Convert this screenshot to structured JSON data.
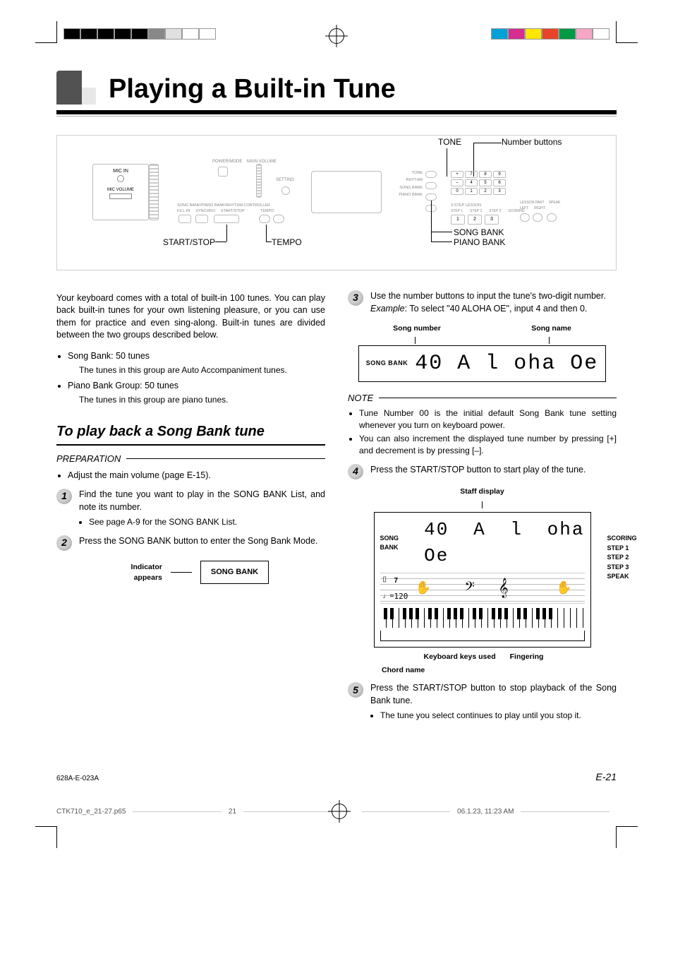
{
  "printmarks": {
    "left_swatches": [
      "#000000",
      "#000000",
      "#000000",
      "#000000",
      "#000000",
      "#888888",
      "#e0e0e0",
      "#ffffff",
      "#ffffff"
    ],
    "right_swatches": [
      "#00a1d6",
      "#d42e91",
      "#ffe600",
      "#e8442a",
      "#009944",
      "#f5a7c5",
      "#ffffff"
    ]
  },
  "title": "Playing a Built-in Tune",
  "diagram": {
    "callouts": {
      "tone": "TONE",
      "number_buttons": "Number buttons",
      "song_bank": "SONG BANK",
      "piano_bank": "PIANO BANK",
      "tempo": "TEMPO",
      "start_stop": "START/STOP"
    },
    "panel_labels": {
      "mic_in": "MIC IN",
      "mic_volume": "MIC VOLUME",
      "song_bank_ctrl": "SONG BANK/PIANO BANK/RHYTHM CONTROLLER",
      "power_mode": "POWER/MODE",
      "main_volume": "MAIN VOLUME",
      "setting": "SETTING",
      "fill_in": "FILL-IN",
      "synchro": "SYNCHRO",
      "start_stop_btn": "START/STOP",
      "tempo_btn": "TEMPO",
      "tone_btn": "TONE",
      "rhythm_btn": "RHYTHM",
      "song_bank_btn": "SONG BANK",
      "piano_bank_btn": "PIANO BANK",
      "three_step": "3-STEP LESSON",
      "step1": "STEP 1",
      "step2": "STEP 2",
      "step3": "STEP 3",
      "scoring": "SCORING",
      "lesson_part": "LESSON PART",
      "left": "LEFT",
      "right": "RIGHT",
      "speak": "SPEAK"
    },
    "keypad": [
      "+",
      "7",
      "8",
      "9",
      "–",
      "4",
      "5",
      "6",
      "0",
      "1",
      "2",
      "3"
    ],
    "step_keys": [
      "1",
      "2",
      "3"
    ]
  },
  "intro": "Your keyboard comes with a total of built-in 100 tunes. You can play back built-in tunes for your own listening pleasure, or you can use them for practice and even sing-along. Built-in tunes are divided between the two groups described below.",
  "groups": [
    {
      "head": "Song Bank: 50 tunes",
      "sub": "The tunes in this group are Auto Accompaniment tunes."
    },
    {
      "head": "Piano Bank Group: 50 tunes",
      "sub": "The tunes in this group are piano tunes."
    }
  ],
  "section_h2": "To play back a Song Bank tune",
  "preparation_label": "PREPARATION",
  "preparation_item": "Adjust the main volume (page E-15).",
  "steps_left": [
    {
      "n": "1",
      "text": "Find the tune you want to play in the SONG BANK List, and note its number.",
      "bullets": [
        "See page A-9 for the SONG BANK List."
      ]
    },
    {
      "n": "2",
      "text": "Press the SONG BANK button to enter the Song Bank Mode.",
      "bullets": []
    }
  ],
  "indicator_fig": {
    "label": "Indicator appears",
    "box": "SONG BANK"
  },
  "steps_right": [
    {
      "n": "3",
      "text": "Use the number buttons to input the tune's two-digit number.",
      "example_label": "Example",
      "example": "To select \"40 ALOHA OE\", input 4 and then 0."
    },
    {
      "n": "4",
      "text": "Press the START/STOP button to start play of the tune."
    },
    {
      "n": "5",
      "text": "Press the START/STOP button to stop playback of the Song Bank tune.",
      "bullets": [
        "The tune you select continues to play until you stop it."
      ]
    }
  ],
  "lcd1": {
    "callout_left": "Song number",
    "callout_right": "Song name",
    "badge": "SONG BANK",
    "seg": "40 A l oha  Oe"
  },
  "note": {
    "label": "NOTE",
    "items": [
      "Tune Number 00 is the initial default Song Bank tune setting whenever you turn on keyboard power.",
      "You can also increment the displayed tune number by pressing [+] and decrement is by pressing [–]."
    ]
  },
  "disp_fig": {
    "top": "Staff display",
    "badge": "SONG BANK",
    "seg": "40 A l oha  Oe",
    "tempo_value": "120",
    "beat_value": "7",
    "side": [
      "SCORING",
      "STEP 1",
      "STEP 2",
      "STEP 3",
      "SPEAK"
    ],
    "bottom_left": "Keyboard keys used",
    "bottom_right": "Fingering",
    "chord": "Chord name"
  },
  "footer": {
    "code": "628A-E-023A",
    "page": "E-21",
    "file": "CTK710_e_21-27.p65",
    "sheet": "21",
    "date": "06.1.23, 11:23 AM"
  }
}
